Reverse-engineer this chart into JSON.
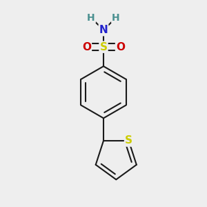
{
  "bg_color": "#eeeeee",
  "bond_color": "#1a1a1a",
  "S_sulfonamide_color": "#cccc00",
  "S_thiophene_color": "#cccc00",
  "N_color": "#2222cc",
  "O_color": "#cc0000",
  "H_color": "#4a9090",
  "line_width": 1.5,
  "figsize": [
    3.0,
    3.0
  ],
  "dpi": 100,
  "xlim": [
    -0.28,
    0.28
  ],
  "ylim": [
    -0.48,
    0.42
  ]
}
